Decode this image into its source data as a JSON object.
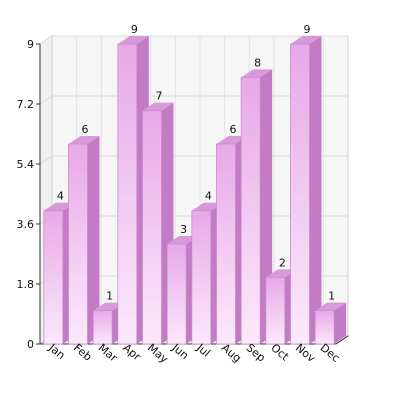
{
  "chart_data": {
    "type": "bar",
    "categories": [
      "Jan",
      "Feb",
      "Mar",
      "Apr",
      "May",
      "Jun",
      "Jul",
      "Aug",
      "Sep",
      "Oct",
      "Nov",
      "Dec"
    ],
    "values": [
      4,
      6,
      1,
      9,
      7,
      3,
      4,
      6,
      8,
      2,
      9,
      1
    ],
    "yticks": [
      "0",
      "1.8",
      "3.6",
      "5.4",
      "7.2",
      "9"
    ],
    "ylim": [
      0,
      9
    ],
    "grid": true,
    "data_labels": true,
    "style": "3d",
    "colors": {
      "bar_front_top": "#e8a8e8",
      "bar_front_bottom": "#fbe9fb",
      "bar_side": "#c27bc4",
      "bar_top": "#d79ad9",
      "plot_back": "#f6f6f6",
      "grid": "#d9d9d9",
      "axis": "#333333"
    }
  }
}
